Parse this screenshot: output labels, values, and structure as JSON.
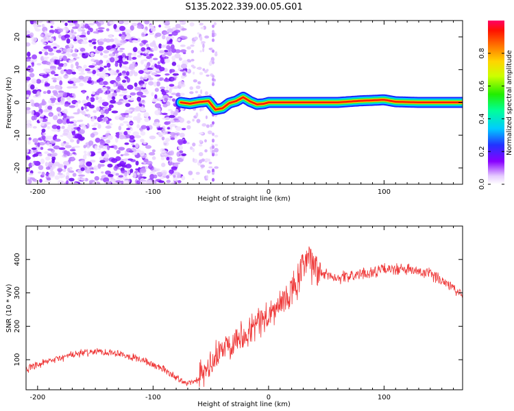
{
  "title": "S135.2022.339.00.05.G01",
  "colors": {
    "line": "#ee3333",
    "axis": "#000000",
    "background": "#ffffff"
  },
  "chart_data": [
    {
      "type": "heatmap",
      "xlabel": "Height of straight line (km)",
      "ylabel": "Frequency (Hz)",
      "xlim": [
        -210,
        168
      ],
      "ylim": [
        -25,
        25
      ],
      "xticks": [
        -200,
        -100,
        0,
        100
      ],
      "yticks": [
        -20,
        -10,
        0,
        10,
        20
      ],
      "colorbar": {
        "label": "Normalized spectral amplitude",
        "range": [
          0,
          1
        ],
        "ticks": [
          "0.0",
          "0.2",
          "0.4",
          "0.6",
          "0.8"
        ],
        "colormap": "rainbow",
        "lowest_color": "#ffffff",
        "highest_color": "#ff0066"
      },
      "ridge": {
        "description_x": [
          -76,
          -68,
          -60,
          -52,
          -46,
          -40,
          -34,
          -28,
          -22,
          -16,
          -10,
          -4,
          0,
          40,
          60,
          80,
          88,
          100,
          110,
          130,
          168
        ],
        "frequency": [
          0,
          -0.4,
          0.1,
          0.4,
          -2.2,
          -1.8,
          -0.2,
          0.4,
          1.6,
          0.3,
          -0.6,
          -0.4,
          0,
          0,
          0,
          0.5,
          0.6,
          0.8,
          0.2,
          0,
          0
        ]
      }
    },
    {
      "type": "line",
      "xlabel": "Height of straight line (km)",
      "ylabel": "SNR (10 * v/v)",
      "xlim": [
        -210,
        168
      ],
      "ylim": [
        10,
        500
      ],
      "xticks": [
        -200,
        -100,
        0,
        100
      ],
      "yticks": [
        100,
        200,
        300,
        400
      ],
      "series": [
        {
          "color": "#ee3333",
          "x": [
            -210,
            -190,
            -170,
            -150,
            -130,
            -110,
            -90,
            -75,
            -65,
            -55,
            -45,
            -35,
            -25,
            -15,
            -5,
            5,
            15,
            25,
            33,
            45,
            60,
            80,
            100,
            120,
            140,
            155,
            168
          ],
          "y": [
            70,
            95,
            115,
            125,
            120,
            100,
            70,
            35,
            30,
            60,
            110,
            150,
            170,
            195,
            220,
            245,
            280,
            330,
            400,
            360,
            345,
            355,
            370,
            370,
            355,
            330,
            290
          ]
        }
      ]
    }
  ]
}
